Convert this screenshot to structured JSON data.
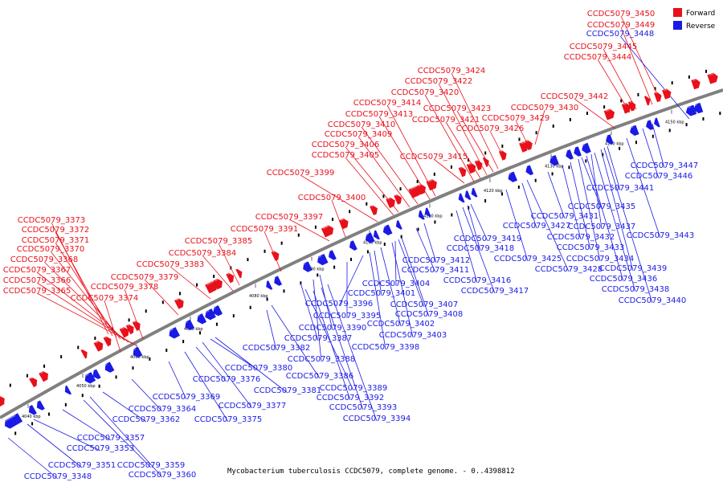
{
  "colors": {
    "forward": "#e8101a",
    "reverse": "#1a1ae6",
    "backbone": "#808080"
  },
  "legend": {
    "forward": "Forward",
    "reverse": "Reverse"
  },
  "caption": "Mycobacterium tuberculosis CCDC5079, complete genome. - 0..4398812",
  "scale": {
    "ticks": [
      "4040 kbp",
      "4050 kbp",
      "4060 kbp",
      "4070 kbp",
      "4080 kbp",
      "4090 kbp",
      "4100 kbp",
      "4110 kbp",
      "4120 kbp",
      "4130 kbp",
      "4140 kbp",
      "4150 kbp"
    ]
  },
  "forward_genes": [
    "CCDC5079_3365",
    "CCDC5079_3366",
    "CCDC5079_3367",
    "CCDC5079_3368",
    "CCDC5079_3370",
    "CCDC5079_3371",
    "CCDC5079_3372",
    "CCDC5079_3373",
    "CCDC5079_3374",
    "CCDC5079_3378",
    "CCDC5079_3379",
    "CCDC5079_3383",
    "CCDC5079_3384",
    "CCDC5079_3385",
    "CCDC5079_3391",
    "CCDC5079_3397",
    "CCDC5079_3400",
    "CCDC5079_3399",
    "CCDC5079_3405",
    "CCDC5079_3406",
    "CCDC5079_3409",
    "CCDC5079_3410",
    "CCDC5079_3413",
    "CCDC5079_3414",
    "CCDC5079_3415",
    "CCDC5079_3420",
    "CCDC5079_3421",
    "CCDC5079_3422",
    "CCDC5079_3423",
    "CCDC5079_3424",
    "CCDC5079_3426",
    "CCDC5079_3429",
    "CCDC5079_3430",
    "CCDC5079_3442",
    "CCDC5079_3444",
    "CCDC5079_3445",
    "CCDC5079_3449",
    "CCDC5079_3450"
  ],
  "reverse_genes": [
    "CCDC5079_3348",
    "CCDC5079_3351",
    "CCDC5079_3353",
    "CCDC5079_3357",
    "CCDC5079_3359",
    "CCDC5079_3360",
    "CCDC5079_3362",
    "CCDC5079_3364",
    "CCDC5079_3369",
    "CCDC5079_3375",
    "CCDC5079_3376",
    "CCDC5079_3377",
    "CCDC5079_3380",
    "CCDC5079_3381",
    "CCDC5079_3382",
    "CCDC5079_3386",
    "CCDC5079_3387",
    "CCDC5079_3388",
    "CCDC5079_3389",
    "CCDC5079_3390",
    "CCDC5079_3392",
    "CCDC5079_3393",
    "CCDC5079_3394",
    "CCDC5079_3395",
    "CCDC5079_3396",
    "CCDC5079_3398",
    "CCDC5079_3401",
    "CCDC5079_3402",
    "CCDC5079_3403",
    "CCDC5079_3404",
    "CCDC5079_3407",
    "CCDC5079_3408",
    "CCDC5079_3411",
    "CCDC5079_3412",
    "CCDC5079_3416",
    "CCDC5079_3417",
    "CCDC5079_3418",
    "CCDC5079_3419",
    "CCDC5079_3425",
    "CCDC5079_3427",
    "CCDC5079_3428",
    "CCDC5079_3431",
    "CCDC5079_3432",
    "CCDC5079_3433",
    "CCDC5079_3434",
    "CCDC5079_3435",
    "CCDC5079_3436",
    "CCDC5079_3437",
    "CCDC5079_3438",
    "CCDC5079_3439",
    "CCDC5079_3440",
    "CCDC5079_3441",
    "CCDC5079_3443",
    "CCDC5079_3446",
    "CCDC5079_3447",
    "CCDC5079_3448"
  ]
}
